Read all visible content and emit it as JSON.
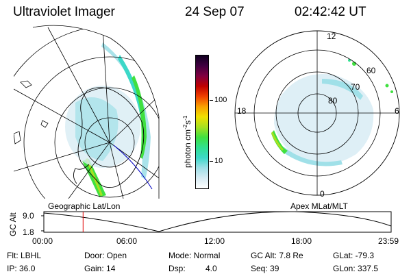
{
  "header": {
    "instrument": "Ultraviolet Imager",
    "date": "24 Sep 07",
    "time": "02:42:42 UT"
  },
  "colorbar": {
    "unit": "photon cm",
    "unit_sup1": "-2",
    "unit_mid": "s",
    "unit_sup2": "-1",
    "ticks": [
      "100",
      "10"
    ],
    "colors": [
      "#ffffff",
      "#d8ecf4",
      "#a0e0e8",
      "#3cd8c8",
      "#30e090",
      "#40e040",
      "#a8e020",
      "#f0e000",
      "#f8a000",
      "#f04000",
      "#c00000",
      "#800040",
      "#400040",
      "#100020"
    ]
  },
  "maps": {
    "left_label": "Geographic Lat/Lon",
    "right_label": "Apex MLat/MLT",
    "mlt_labels": [
      "12",
      "18",
      "6",
      "0"
    ],
    "mlat_labels": [
      "60",
      "70",
      "80"
    ]
  },
  "altitude_plot": {
    "ylabel": "GC Alt",
    "y_ticks": [
      "9.0",
      "1.8"
    ],
    "x_ticks": [
      "00:00",
      "06:00",
      "12:00",
      "18:00",
      "23:59"
    ],
    "current_time_hours": 2.71
  },
  "status": {
    "flt": "Flt: LBHL",
    "ip": "IP: 36.0",
    "door": "Door: Open",
    "gain": "Gain: 14",
    "mode": "Mode: Normal",
    "dsp_label": "Dsp:",
    "dsp_value": "4.0",
    "gc_alt": "GC Alt: 7.8 Re",
    "seq": "Seq: 39",
    "glat": "GLat: -79.3",
    "glon": "GLon: 337.5"
  }
}
